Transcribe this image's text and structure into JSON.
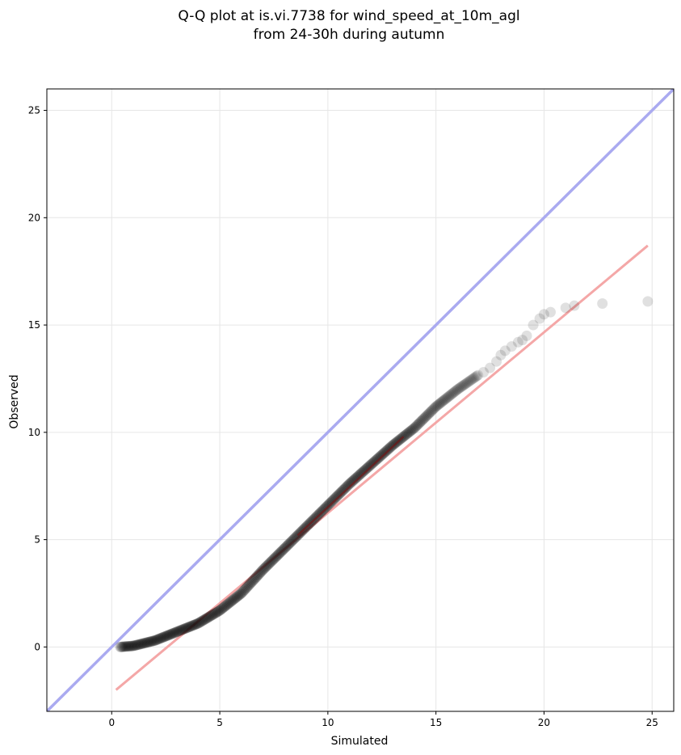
{
  "chart_data": {
    "type": "scatter",
    "title": [
      "Q-Q plot at is.vi.7738 for wind_speed_at_10m_agl",
      "from 24-30h during autumn"
    ],
    "xlabel": "Simulated",
    "ylabel": "Observed",
    "xlim": [
      -3,
      26
    ],
    "ylim": [
      -3,
      26
    ],
    "xticks": [
      0,
      5,
      10,
      15,
      20,
      25
    ],
    "yticks": [
      0,
      5,
      10,
      15,
      20,
      25
    ],
    "grid": true,
    "colors": {
      "points": "#000000",
      "identity": "#aaaaf0",
      "fit": "#f4a7a7",
      "fit_dark": "#8b0000",
      "grid": "#e6e6e6"
    },
    "identity_line": {
      "x": [
        -3,
        26
      ],
      "y": [
        -3,
        26
      ]
    },
    "fit_line": {
      "x": [
        0.2,
        24.8
      ],
      "y": [
        -2.0,
        18.7
      ]
    },
    "quantile_curve": {
      "x": [
        0.4,
        1.0,
        2.0,
        3.0,
        4.0,
        5.0,
        6.0,
        7.0,
        8.0,
        9.0,
        10.0,
        11.0,
        12.0,
        13.0,
        14.0,
        15.0,
        16.0,
        17.0
      ],
      "y": [
        0.0,
        0.05,
        0.3,
        0.7,
        1.1,
        1.7,
        2.5,
        3.6,
        4.6,
        5.6,
        6.6,
        7.6,
        8.5,
        9.4,
        10.2,
        11.2,
        12.0,
        12.7
      ]
    },
    "tail_points": {
      "x": [
        17.2,
        17.5,
        17.8,
        18.0,
        18.2,
        18.5,
        18.8,
        19.0,
        19.2,
        19.5,
        19.8,
        20.0,
        20.3,
        21.0,
        21.4,
        22.7,
        24.8
      ],
      "y": [
        12.8,
        13.0,
        13.3,
        13.6,
        13.8,
        14.0,
        14.2,
        14.3,
        14.5,
        15.0,
        15.3,
        15.5,
        15.6,
        15.8,
        15.9,
        16.0,
        16.1
      ]
    }
  }
}
